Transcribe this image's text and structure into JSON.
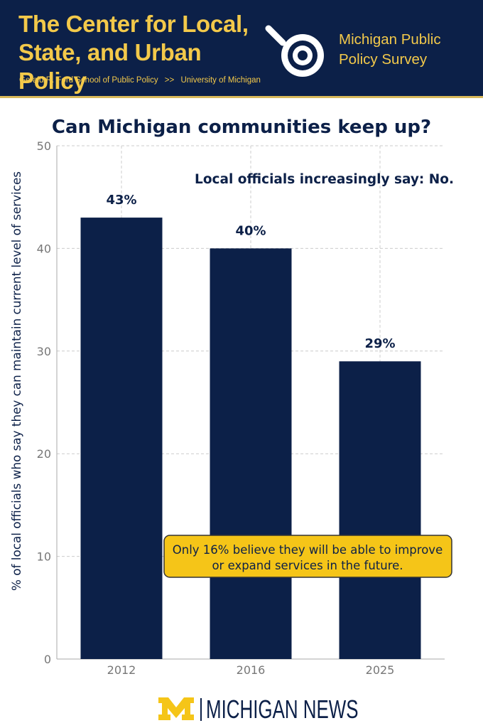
{
  "header": {
    "org_title_line1": "The Center for Local,",
    "org_title_line2": "State, and Urban Policy",
    "org_subtitle_school": "Gerald R. Ford School of Public Policy",
    "org_subtitle_separator": ">>",
    "org_subtitle_university": "University of Michigan",
    "survey_line1": "Michigan Public",
    "survey_line2": "Policy Survey",
    "logo_icon": "magnifier-target-icon",
    "background_color": "#0c2048",
    "accent_color": "#f3c94a"
  },
  "chart_data": {
    "type": "bar",
    "title": "Can Michigan communities keep up?",
    "subtitle": "Local officials increasingly say: No.",
    "xlabel": "",
    "ylabel": "% of local officials who say they can maintain current level of services",
    "categories": [
      "2012",
      "2016",
      "2025"
    ],
    "values": [
      43,
      40,
      29
    ],
    "data_labels": [
      "43%",
      "40%",
      "29%"
    ],
    "ylim": [
      0,
      50
    ],
    "yticks": [
      0,
      10,
      20,
      30,
      40,
      50
    ],
    "grid": true,
    "bar_color": "#0c2048",
    "annotation": {
      "line1": "Only 16% believe they will be able to improve",
      "line2": "or expand services in the future.",
      "background_color": "#f5c518"
    }
  },
  "footer": {
    "brand_icon": "block-m-icon",
    "brand_text": "MICHIGAN NEWS",
    "brand_color": "#f5c518"
  }
}
